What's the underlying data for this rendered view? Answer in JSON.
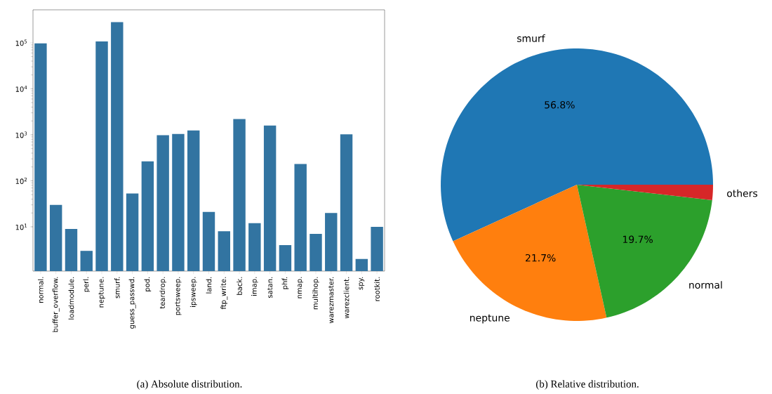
{
  "chart_data": [
    {
      "type": "bar",
      "log": "y",
      "color": "#3274a1",
      "categories": [
        "normal.",
        "buffer_overflow.",
        "loadmodule.",
        "perl.",
        "neptune.",
        "smurf.",
        "guess_passwd.",
        "pod.",
        "teardrop.",
        "portsweep.",
        "ipsweep.",
        "land.",
        "ftp_write.",
        "back.",
        "imap.",
        "satan.",
        "phf.",
        "nmap.",
        "multihop.",
        "warezmaster.",
        "warezclient.",
        "spy.",
        "rootkit."
      ],
      "values": [
        97278,
        30,
        9,
        3,
        107201,
        280790,
        53,
        264,
        979,
        1040,
        1247,
        21,
        8,
        2203,
        12,
        1589,
        4,
        231,
        7,
        20,
        1020,
        2,
        10
      ],
      "ylim": [
        1.09,
        520000
      ],
      "yticks": [
        {
          "value": 10,
          "label": "10$^{1}$"
        },
        {
          "value": 100,
          "label": "10$^{2}$"
        },
        {
          "value": 1000,
          "label": "10$^{3}$"
        },
        {
          "value": 10000,
          "label": "10$^{4}$"
        },
        {
          "value": 100000,
          "label": "10$^{5}$"
        }
      ],
      "annotations": [
        "(a) Absolute distribution."
      ]
    },
    {
      "type": "pie",
      "categories": [
        "smurf",
        "neptune",
        "normal",
        "others"
      ],
      "values": [
        56.8,
        21.7,
        19.7,
        1.8
      ],
      "value_labels": [
        "56.8%",
        "21.7%",
        "19.7%",
        null
      ],
      "colors": [
        "#1f77b4",
        "#ff7f0e",
        "#2ca02c",
        "#d62728"
      ],
      "annotations": [
        "(b) Relative distribution."
      ]
    }
  ]
}
